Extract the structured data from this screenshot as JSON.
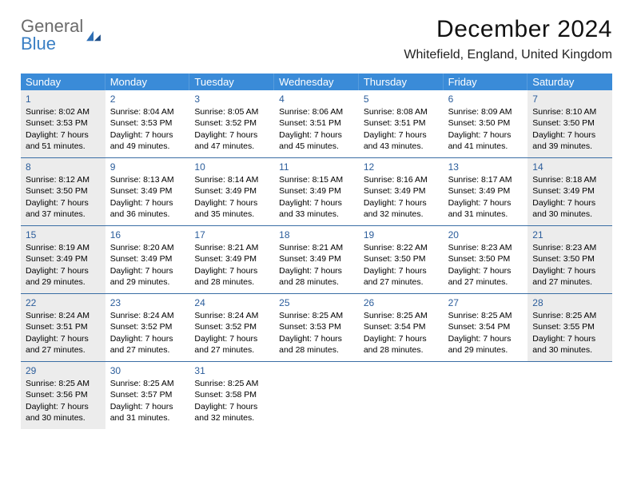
{
  "logo": {
    "text1": "General",
    "text2": "Blue"
  },
  "title": "December 2024",
  "location": "Whitefield, England, United Kingdom",
  "header_bg": "#3a8bd8",
  "header_text_color": "#ffffff",
  "daynum_color": "#2b5d9b",
  "week_border_color": "#3a6ea5",
  "shaded_bg": "#ececec",
  "day_names": [
    "Sunday",
    "Monday",
    "Tuesday",
    "Wednesday",
    "Thursday",
    "Friday",
    "Saturday"
  ],
  "weeks": [
    [
      {
        "n": "1",
        "shaded": true,
        "sr": "Sunrise: 8:02 AM",
        "ss": "Sunset: 3:53 PM",
        "d1": "Daylight: 7 hours",
        "d2": "and 51 minutes."
      },
      {
        "n": "2",
        "sr": "Sunrise: 8:04 AM",
        "ss": "Sunset: 3:53 PM",
        "d1": "Daylight: 7 hours",
        "d2": "and 49 minutes."
      },
      {
        "n": "3",
        "sr": "Sunrise: 8:05 AM",
        "ss": "Sunset: 3:52 PM",
        "d1": "Daylight: 7 hours",
        "d2": "and 47 minutes."
      },
      {
        "n": "4",
        "sr": "Sunrise: 8:06 AM",
        "ss": "Sunset: 3:51 PM",
        "d1": "Daylight: 7 hours",
        "d2": "and 45 minutes."
      },
      {
        "n": "5",
        "sr": "Sunrise: 8:08 AM",
        "ss": "Sunset: 3:51 PM",
        "d1": "Daylight: 7 hours",
        "d2": "and 43 minutes."
      },
      {
        "n": "6",
        "sr": "Sunrise: 8:09 AM",
        "ss": "Sunset: 3:50 PM",
        "d1": "Daylight: 7 hours",
        "d2": "and 41 minutes."
      },
      {
        "n": "7",
        "shaded": true,
        "sr": "Sunrise: 8:10 AM",
        "ss": "Sunset: 3:50 PM",
        "d1": "Daylight: 7 hours",
        "d2": "and 39 minutes."
      }
    ],
    [
      {
        "n": "8",
        "shaded": true,
        "sr": "Sunrise: 8:12 AM",
        "ss": "Sunset: 3:50 PM",
        "d1": "Daylight: 7 hours",
        "d2": "and 37 minutes."
      },
      {
        "n": "9",
        "sr": "Sunrise: 8:13 AM",
        "ss": "Sunset: 3:49 PM",
        "d1": "Daylight: 7 hours",
        "d2": "and 36 minutes."
      },
      {
        "n": "10",
        "sr": "Sunrise: 8:14 AM",
        "ss": "Sunset: 3:49 PM",
        "d1": "Daylight: 7 hours",
        "d2": "and 35 minutes."
      },
      {
        "n": "11",
        "sr": "Sunrise: 8:15 AM",
        "ss": "Sunset: 3:49 PM",
        "d1": "Daylight: 7 hours",
        "d2": "and 33 minutes."
      },
      {
        "n": "12",
        "sr": "Sunrise: 8:16 AM",
        "ss": "Sunset: 3:49 PM",
        "d1": "Daylight: 7 hours",
        "d2": "and 32 minutes."
      },
      {
        "n": "13",
        "sr": "Sunrise: 8:17 AM",
        "ss": "Sunset: 3:49 PM",
        "d1": "Daylight: 7 hours",
        "d2": "and 31 minutes."
      },
      {
        "n": "14",
        "shaded": true,
        "sr": "Sunrise: 8:18 AM",
        "ss": "Sunset: 3:49 PM",
        "d1": "Daylight: 7 hours",
        "d2": "and 30 minutes."
      }
    ],
    [
      {
        "n": "15",
        "shaded": true,
        "sr": "Sunrise: 8:19 AM",
        "ss": "Sunset: 3:49 PM",
        "d1": "Daylight: 7 hours",
        "d2": "and 29 minutes."
      },
      {
        "n": "16",
        "sr": "Sunrise: 8:20 AM",
        "ss": "Sunset: 3:49 PM",
        "d1": "Daylight: 7 hours",
        "d2": "and 29 minutes."
      },
      {
        "n": "17",
        "sr": "Sunrise: 8:21 AM",
        "ss": "Sunset: 3:49 PM",
        "d1": "Daylight: 7 hours",
        "d2": "and 28 minutes."
      },
      {
        "n": "18",
        "sr": "Sunrise: 8:21 AM",
        "ss": "Sunset: 3:49 PM",
        "d1": "Daylight: 7 hours",
        "d2": "and 28 minutes."
      },
      {
        "n": "19",
        "sr": "Sunrise: 8:22 AM",
        "ss": "Sunset: 3:50 PM",
        "d1": "Daylight: 7 hours",
        "d2": "and 27 minutes."
      },
      {
        "n": "20",
        "sr": "Sunrise: 8:23 AM",
        "ss": "Sunset: 3:50 PM",
        "d1": "Daylight: 7 hours",
        "d2": "and 27 minutes."
      },
      {
        "n": "21",
        "shaded": true,
        "sr": "Sunrise: 8:23 AM",
        "ss": "Sunset: 3:50 PM",
        "d1": "Daylight: 7 hours",
        "d2": "and 27 minutes."
      }
    ],
    [
      {
        "n": "22",
        "shaded": true,
        "sr": "Sunrise: 8:24 AM",
        "ss": "Sunset: 3:51 PM",
        "d1": "Daylight: 7 hours",
        "d2": "and 27 minutes."
      },
      {
        "n": "23",
        "sr": "Sunrise: 8:24 AM",
        "ss": "Sunset: 3:52 PM",
        "d1": "Daylight: 7 hours",
        "d2": "and 27 minutes."
      },
      {
        "n": "24",
        "sr": "Sunrise: 8:24 AM",
        "ss": "Sunset: 3:52 PM",
        "d1": "Daylight: 7 hours",
        "d2": "and 27 minutes."
      },
      {
        "n": "25",
        "sr": "Sunrise: 8:25 AM",
        "ss": "Sunset: 3:53 PM",
        "d1": "Daylight: 7 hours",
        "d2": "and 28 minutes."
      },
      {
        "n": "26",
        "sr": "Sunrise: 8:25 AM",
        "ss": "Sunset: 3:54 PM",
        "d1": "Daylight: 7 hours",
        "d2": "and 28 minutes."
      },
      {
        "n": "27",
        "sr": "Sunrise: 8:25 AM",
        "ss": "Sunset: 3:54 PM",
        "d1": "Daylight: 7 hours",
        "d2": "and 29 minutes."
      },
      {
        "n": "28",
        "shaded": true,
        "sr": "Sunrise: 8:25 AM",
        "ss": "Sunset: 3:55 PM",
        "d1": "Daylight: 7 hours",
        "d2": "and 30 minutes."
      }
    ],
    [
      {
        "n": "29",
        "shaded": true,
        "sr": "Sunrise: 8:25 AM",
        "ss": "Sunset: 3:56 PM",
        "d1": "Daylight: 7 hours",
        "d2": "and 30 minutes."
      },
      {
        "n": "30",
        "sr": "Sunrise: 8:25 AM",
        "ss": "Sunset: 3:57 PM",
        "d1": "Daylight: 7 hours",
        "d2": "and 31 minutes."
      },
      {
        "n": "31",
        "sr": "Sunrise: 8:25 AM",
        "ss": "Sunset: 3:58 PM",
        "d1": "Daylight: 7 hours",
        "d2": "and 32 minutes."
      },
      {
        "empty": true
      },
      {
        "empty": true
      },
      {
        "empty": true
      },
      {
        "empty": true
      }
    ]
  ]
}
